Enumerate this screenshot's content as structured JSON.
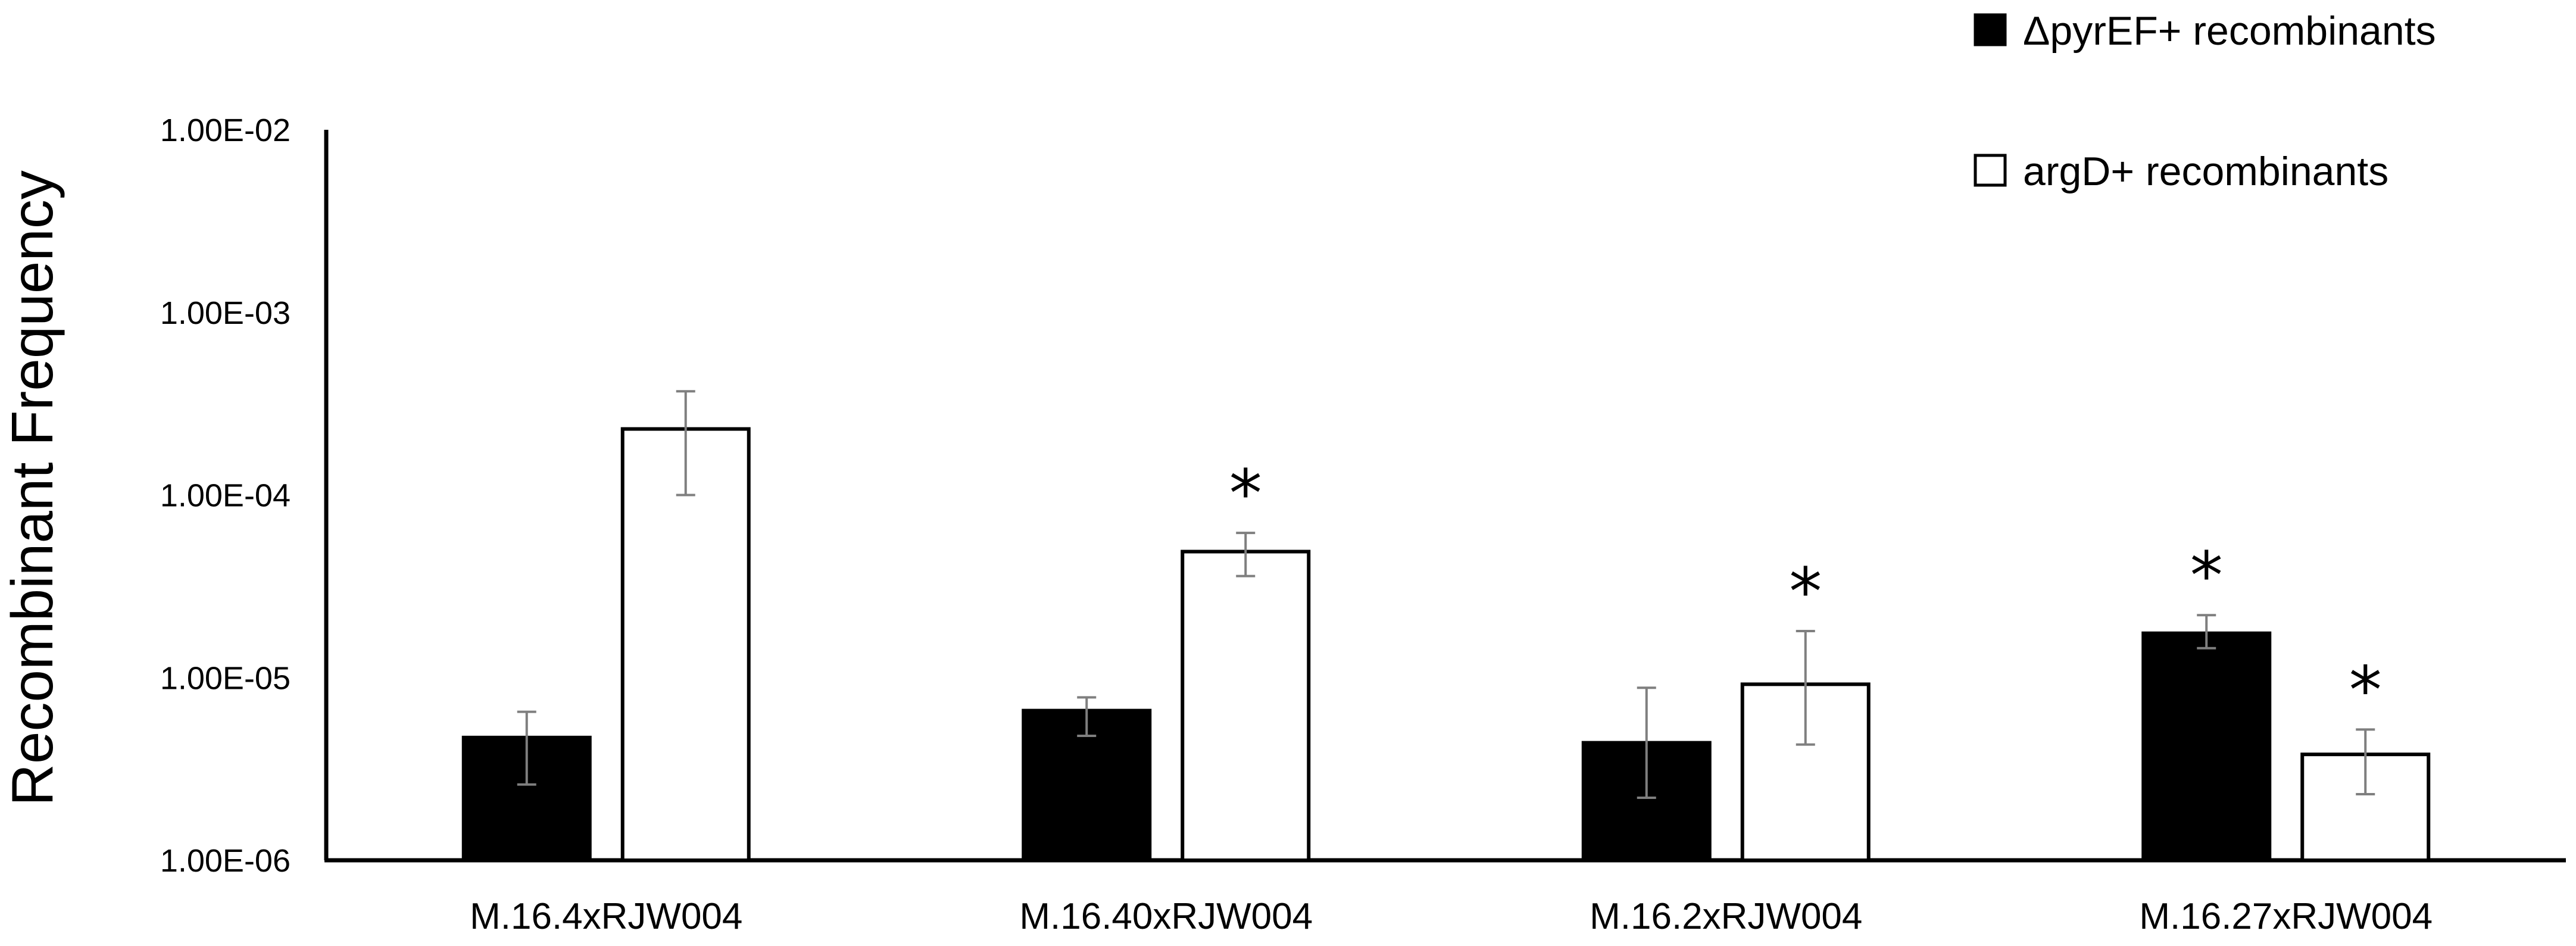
{
  "chart_data": {
    "type": "bar",
    "y_scale": "log",
    "ylim": [
      1e-06,
      0.01
    ],
    "y_ticks": [
      1e-06,
      1e-05,
      0.0001,
      0.001,
      0.01
    ],
    "y_tick_labels": [
      "1.00E-06",
      "1.00E-05",
      "1.00E-04",
      "1.00E-03",
      "1.00E-02"
    ],
    "ylabel": "Recombinant Frequency",
    "xlabel": "",
    "title": "",
    "grid": false,
    "legend_position": "top-right",
    "categories": [
      "M.16.4xRJW004",
      "M.16.40xRJW004",
      "M.16.2xRJW004",
      "M.16.27xRJW004"
    ],
    "series": [
      {
        "name": "ΔpyrEF+ recombinants",
        "fill": "#000000",
        "values": [
          4.7e-06,
          6.6e-06,
          4.4e-06,
          1.75e-05
        ],
        "error_low": [
          2.6e-06,
          4.8e-06,
          2.2e-06,
          1.45e-05
        ],
        "error_high": [
          6.5e-06,
          7.8e-06,
          8.8e-06,
          2.2e-05
        ],
        "significant": [
          false,
          false,
          false,
          true
        ]
      },
      {
        "name": "argD+ recombinants",
        "fill": "#ffffff",
        "values": [
          0.00023,
          4.9e-05,
          9.2e-06,
          3.8e-06
        ],
        "error_low": [
          0.0001,
          3.6e-05,
          4.3e-06,
          2.3e-06
        ],
        "error_high": [
          0.00037,
          6.2e-05,
          1.8e-05,
          5.2e-06
        ],
        "significant": [
          false,
          true,
          true,
          true
        ]
      }
    ],
    "significance_marker": "*"
  }
}
